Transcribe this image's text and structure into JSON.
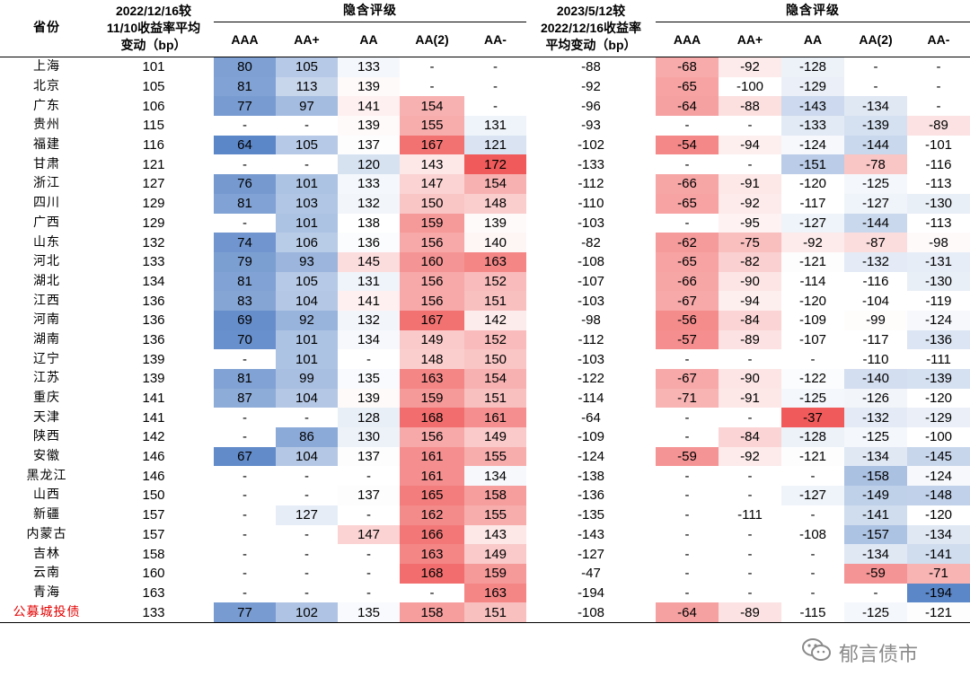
{
  "headers": {
    "province": "省份",
    "change1": [
      "2022/12/16较",
      "11/10收益率平均",
      "变动（bp）"
    ],
    "implied1": "隐含评级",
    "change2": [
      "2023/5/12较",
      "2022/12/16收益率",
      "平均变动（bp）"
    ],
    "implied2": "隐含评级",
    "ratings": [
      "AAA",
      "AA+",
      "AA",
      "AA(2)",
      "AA-"
    ]
  },
  "rows": [
    {
      "p": "上海",
      "a": "101",
      "l": [
        "80",
        "105",
        "133",
        "-",
        "-"
      ],
      "b": "-88",
      "r": [
        "-68",
        "-92",
        "-128",
        "-",
        "-"
      ]
    },
    {
      "p": "北京",
      "a": "105",
      "l": [
        "81",
        "113",
        "139",
        "-",
        "-"
      ],
      "b": "-92",
      "r": [
        "-65",
        "-100",
        "-129",
        "-",
        "-"
      ]
    },
    {
      "p": "广东",
      "a": "106",
      "l": [
        "77",
        "97",
        "141",
        "154",
        "-"
      ],
      "b": "-96",
      "r": [
        "-64",
        "-88",
        "-143",
        "-134",
        "-"
      ]
    },
    {
      "p": "贵州",
      "a": "115",
      "l": [
        "-",
        "-",
        "139",
        "155",
        "131"
      ],
      "b": "-93",
      "r": [
        "-",
        "-",
        "-133",
        "-139",
        "-89"
      ]
    },
    {
      "p": "福建",
      "a": "116",
      "l": [
        "64",
        "105",
        "137",
        "167",
        "121"
      ],
      "b": "-102",
      "r": [
        "-54",
        "-94",
        "-124",
        "-144",
        "-101"
      ]
    },
    {
      "p": "甘肃",
      "a": "121",
      "l": [
        "-",
        "-",
        "120",
        "143",
        "172"
      ],
      "b": "-133",
      "r": [
        "-",
        "-",
        "-151",
        "-78",
        "-116"
      ]
    },
    {
      "p": "浙江",
      "a": "127",
      "l": [
        "76",
        "101",
        "133",
        "147",
        "154"
      ],
      "b": "-112",
      "r": [
        "-66",
        "-91",
        "-120",
        "-125",
        "-113"
      ]
    },
    {
      "p": "四川",
      "a": "129",
      "l": [
        "81",
        "103",
        "132",
        "150",
        "148"
      ],
      "b": "-110",
      "r": [
        "-65",
        "-92",
        "-117",
        "-127",
        "-130"
      ]
    },
    {
      "p": "广西",
      "a": "129",
      "l": [
        "-",
        "101",
        "138",
        "159",
        "139"
      ],
      "b": "-103",
      "r": [
        "-",
        "-95",
        "-127",
        "-144",
        "-113"
      ]
    },
    {
      "p": "山东",
      "a": "132",
      "l": [
        "74",
        "106",
        "136",
        "156",
        "140"
      ],
      "b": "-82",
      "r": [
        "-62",
        "-75",
        "-92",
        "-87",
        "-98"
      ]
    },
    {
      "p": "河北",
      "a": "133",
      "l": [
        "79",
        "93",
        "145",
        "160",
        "163"
      ],
      "b": "-108",
      "r": [
        "-65",
        "-82",
        "-121",
        "-132",
        "-131"
      ]
    },
    {
      "p": "湖北",
      "a": "134",
      "l": [
        "81",
        "105",
        "131",
        "156",
        "152"
      ],
      "b": "-107",
      "r": [
        "-66",
        "-90",
        "-114",
        "-116",
        "-130"
      ]
    },
    {
      "p": "江西",
      "a": "136",
      "l": [
        "83",
        "104",
        "141",
        "156",
        "151"
      ],
      "b": "-103",
      "r": [
        "-67",
        "-94",
        "-120",
        "-104",
        "-119"
      ]
    },
    {
      "p": "河南",
      "a": "136",
      "l": [
        "69",
        "92",
        "132",
        "167",
        "142"
      ],
      "b": "-98",
      "r": [
        "-56",
        "-84",
        "-109",
        "-99",
        "-124"
      ]
    },
    {
      "p": "湖南",
      "a": "136",
      "l": [
        "70",
        "101",
        "134",
        "149",
        "152"
      ],
      "b": "-112",
      "r": [
        "-57",
        "-89",
        "-107",
        "-117",
        "-136"
      ]
    },
    {
      "p": "辽宁",
      "a": "139",
      "l": [
        "-",
        "101",
        "-",
        "148",
        "150"
      ],
      "b": "-103",
      "r": [
        "-",
        "-",
        "-",
        "-110",
        "-111"
      ]
    },
    {
      "p": "江苏",
      "a": "139",
      "l": [
        "81",
        "99",
        "135",
        "163",
        "154"
      ],
      "b": "-122",
      "r": [
        "-67",
        "-90",
        "-122",
        "-140",
        "-139"
      ]
    },
    {
      "p": "重庆",
      "a": "141",
      "l": [
        "87",
        "104",
        "139",
        "159",
        "151"
      ],
      "b": "-114",
      "r": [
        "-71",
        "-91",
        "-125",
        "-126",
        "-120"
      ]
    },
    {
      "p": "天津",
      "a": "141",
      "l": [
        "-",
        "-",
        "128",
        "168",
        "161"
      ],
      "b": "-64",
      "r": [
        "-",
        "-",
        "-37",
        "-132",
        "-129"
      ]
    },
    {
      "p": "陕西",
      "a": "142",
      "l": [
        "-",
        "86",
        "130",
        "156",
        "149"
      ],
      "b": "-109",
      "r": [
        "-",
        "-84",
        "-128",
        "-125",
        "-100"
      ]
    },
    {
      "p": "安徽",
      "a": "146",
      "l": [
        "67",
        "104",
        "137",
        "161",
        "155"
      ],
      "b": "-124",
      "r": [
        "-59",
        "-92",
        "-121",
        "-134",
        "-145"
      ]
    },
    {
      "p": "黑龙江",
      "a": "146",
      "l": [
        "-",
        "-",
        "-",
        "161",
        "134"
      ],
      "b": "-138",
      "r": [
        "-",
        "-",
        "-",
        "-158",
        "-124"
      ]
    },
    {
      "p": "山西",
      "a": "150",
      "l": [
        "-",
        "-",
        "137",
        "165",
        "158"
      ],
      "b": "-136",
      "r": [
        "-",
        "-",
        "-127",
        "-149",
        "-148"
      ]
    },
    {
      "p": "新疆",
      "a": "157",
      "l": [
        "-",
        "127",
        "-",
        "162",
        "155"
      ],
      "b": "-135",
      "r": [
        "-",
        "-111",
        "-",
        "-141",
        "-120"
      ]
    },
    {
      "p": "内蒙古",
      "a": "157",
      "l": [
        "-",
        "-",
        "147",
        "166",
        "143"
      ],
      "b": "-143",
      "r": [
        "-",
        "-",
        "-108",
        "-157",
        "-134"
      ]
    },
    {
      "p": "吉林",
      "a": "158",
      "l": [
        "-",
        "-",
        "-",
        "163",
        "149"
      ],
      "b": "-127",
      "r": [
        "-",
        "-",
        "-",
        "-134",
        "-141"
      ]
    },
    {
      "p": "云南",
      "a": "160",
      "l": [
        "-",
        "-",
        "-",
        "168",
        "159"
      ],
      "b": "-47",
      "r": [
        "-",
        "-",
        "-",
        "-59",
        "-71"
      ]
    },
    {
      "p": "青海",
      "a": "163",
      "l": [
        "-",
        "-",
        "-",
        "-",
        "163"
      ],
      "b": "-194",
      "r": [
        "-",
        "-",
        "-",
        "-",
        "-194"
      ]
    },
    {
      "p": "公募城投债",
      "a": "133",
      "l": [
        "77",
        "102",
        "135",
        "158",
        "151"
      ],
      "b": "-108",
      "r": [
        "-64",
        "-89",
        "-115",
        "-125",
        "-121"
      ],
      "highlight": true
    }
  ],
  "colors": {
    "blue_strong": "#5b86c7",
    "red_strong": "#f05a5a",
    "province_highlight": "#e30000"
  },
  "watermark": {
    "text": "郁言债市",
    "icon": "wechat-icon"
  }
}
